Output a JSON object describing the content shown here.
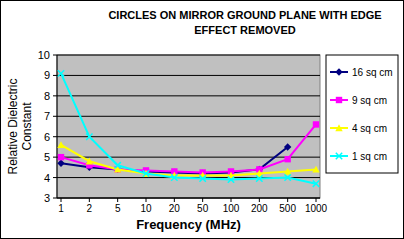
{
  "chart_data": {
    "type": "line",
    "title": "CIRCLES ON MIRROR GROUND PLANE WITH EDGE EFFECT REMOVED",
    "x_label": "Frequency (MHz)",
    "y_label": "Relative Dielectric Constant",
    "categories": [
      "1",
      "2",
      "5",
      "10",
      "20",
      "50",
      "100",
      "200",
      "500",
      "1000"
    ],
    "series": [
      {
        "name": "16 sq cm",
        "color": "#000080",
        "marker": "diamond",
        "values": [
          4.7,
          4.5,
          4.4,
          4.3,
          4.25,
          4.2,
          4.25,
          4.4,
          5.5,
          null
        ]
      },
      {
        "name": "9 sq cm",
        "color": "#ff00ff",
        "marker": "square",
        "values": [
          5.0,
          4.6,
          4.4,
          4.35,
          4.3,
          4.25,
          4.3,
          4.4,
          4.9,
          6.6
        ]
      },
      {
        "name": "4 sq cm",
        "color": "#ffff00",
        "marker": "triangle",
        "values": [
          5.6,
          4.8,
          4.4,
          4.2,
          4.1,
          4.1,
          4.1,
          4.2,
          4.3,
          4.4
        ]
      },
      {
        "name": "1 sq cm",
        "color": "#00ffff",
        "marker": "x",
        "values": [
          9.1,
          6.0,
          4.6,
          4.2,
          4.0,
          3.95,
          3.9,
          3.95,
          4.0,
          3.7
        ]
      }
    ],
    "ylim": [
      3,
      10
    ],
    "yticks": [
      3,
      4,
      5,
      6,
      7,
      8,
      9,
      10
    ],
    "grid": true,
    "legend": "right"
  }
}
